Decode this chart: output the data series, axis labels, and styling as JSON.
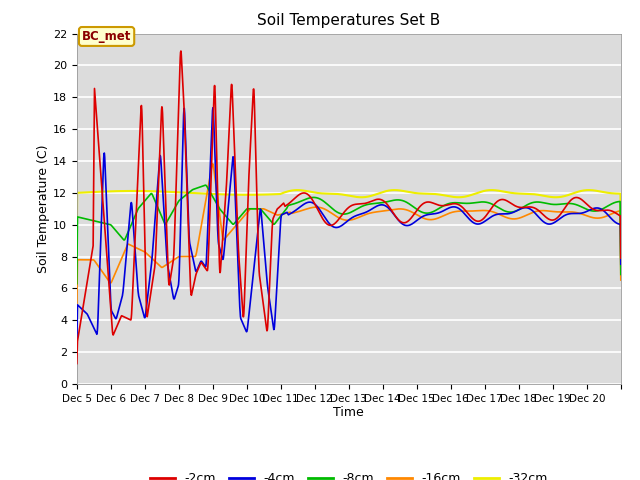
{
  "title": "Soil Temperatures Set B",
  "xlabel": "Time",
  "ylabel": "Soil Temperature (C)",
  "ylim": [
    0,
    22
  ],
  "yticks": [
    0,
    2,
    4,
    6,
    8,
    10,
    12,
    14,
    16,
    18,
    20,
    22
  ],
  "bg_color": "#dcdcdc",
  "annotation_text": "BC_met",
  "annotation_bg": "#ffffcc",
  "annotation_border": "#cc9900",
  "annotation_text_color": "#8b0000",
  "series": {
    "-2cm": {
      "color": "#dd0000",
      "lw": 1.2
    },
    "-4cm": {
      "color": "#0000dd",
      "lw": 1.2
    },
    "-8cm": {
      "color": "#00bb00",
      "lw": 1.2
    },
    "-16cm": {
      "color": "#ff8800",
      "lw": 1.2
    },
    "-32cm": {
      "color": "#eeee00",
      "lw": 1.5
    }
  },
  "x_start": 4,
  "x_end": 20,
  "xtick_positions": [
    4,
    5,
    6,
    7,
    8,
    9,
    10,
    11,
    12,
    13,
    14,
    15,
    16,
    17,
    18,
    19,
    20
  ],
  "xtick_labels": [
    "Dec 5",
    "Dec 6",
    "Dec 7",
    "Dec 8",
    "Dec 9",
    "Dec 10",
    "Dec 11",
    "Dec 12",
    "Dec 13",
    "Dec 14",
    "Dec 15",
    "Dec 16",
    "Dec 17",
    "Dec 18",
    "Dec 19",
    "Dec 20",
    ""
  ]
}
